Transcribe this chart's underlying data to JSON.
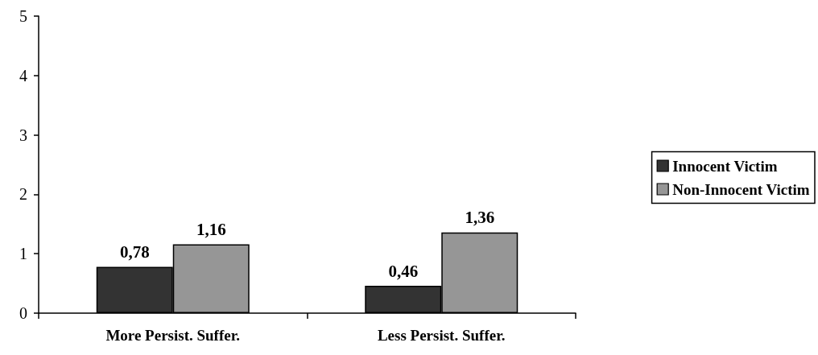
{
  "chart_data": {
    "type": "bar",
    "categories": [
      "More Persist. Suffer.",
      "Less Persist. Suffer."
    ],
    "series": [
      {
        "name": "Innocent Victim",
        "color": "#333333",
        "values": [
          0.78,
          0.46
        ],
        "value_labels": [
          "0,78",
          "0,46"
        ]
      },
      {
        "name": "Non-Innocent Victim",
        "color": "#969696",
        "values": [
          1.16,
          1.36
        ],
        "value_labels": [
          "1,16",
          "1,36"
        ]
      }
    ],
    "ylim": [
      0,
      5
    ],
    "yticks": [
      0,
      1,
      2,
      3,
      4,
      5
    ],
    "grid": false,
    "legend": "right"
  }
}
